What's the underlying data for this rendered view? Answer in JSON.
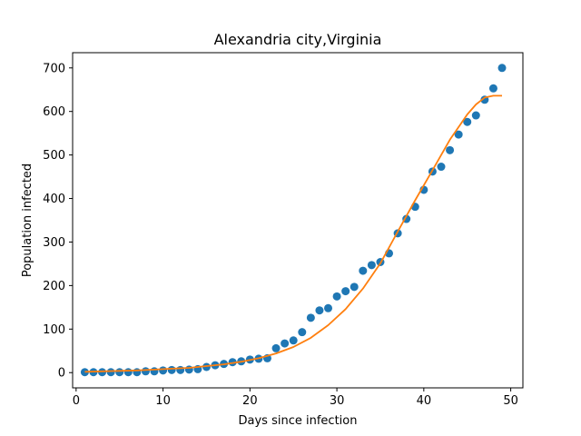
{
  "chart_data": {
    "type": "scatter",
    "title": "Alexandria city,Virginia",
    "xlabel": "Days since infection",
    "ylabel": "Population infected",
    "xlim": [
      -0.4,
      51.4
    ],
    "ylim": [
      -35,
      735
    ],
    "xticks": [
      0,
      10,
      20,
      30,
      40,
      50
    ],
    "yticks": [
      0,
      100,
      200,
      300,
      400,
      500,
      600,
      700
    ],
    "grid": false,
    "series": [
      {
        "kind": "scatter",
        "color": "#1f77b4",
        "x": [
          1,
          2,
          3,
          4,
          5,
          6,
          7,
          8,
          9,
          10,
          11,
          12,
          13,
          14,
          15,
          16,
          17,
          18,
          19,
          20,
          21,
          22,
          23,
          24,
          25,
          26,
          27,
          28,
          29,
          30,
          31,
          32,
          33,
          34,
          35,
          36,
          37,
          38,
          39,
          40,
          41,
          42,
          43,
          44,
          45,
          46,
          47,
          48,
          49
        ],
        "y": [
          1,
          1,
          1,
          1,
          1,
          1,
          1,
          3,
          3,
          5,
          6,
          6,
          7,
          8,
          13,
          17,
          20,
          24,
          26,
          30,
          32,
          33,
          56,
          67,
          74,
          93,
          126,
          143,
          148,
          175,
          187,
          197,
          234,
          247,
          254,
          274,
          320,
          353,
          381,
          420,
          462,
          473,
          511,
          547,
          576,
          591,
          627,
          653,
          700
        ]
      },
      {
        "kind": "line",
        "color": "#ff7f0e",
        "x": [
          1,
          3,
          5,
          7,
          9,
          11,
          13,
          15,
          17,
          19,
          21,
          23,
          25,
          27,
          29,
          31,
          33,
          35,
          37,
          39,
          41,
          43,
          45,
          46,
          47,
          48,
          49
        ],
        "y": [
          2,
          3,
          4,
          5,
          7,
          9,
          11,
          15,
          19,
          25,
          33,
          44,
          59,
          80,
          109,
          146,
          193,
          251,
          324,
          396,
          465,
          535,
          593,
          616,
          632,
          636,
          636
        ]
      }
    ]
  }
}
